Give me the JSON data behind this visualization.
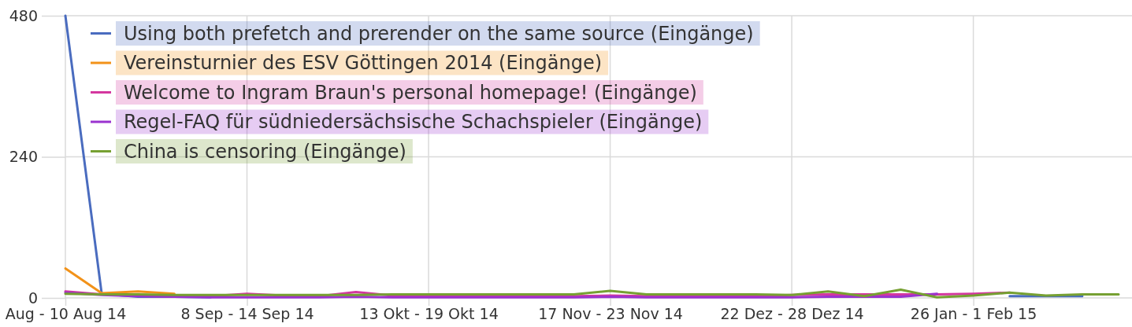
{
  "chart_data": {
    "type": "line",
    "categories": [
      "Aug - 10 Aug 14",
      null,
      null,
      null,
      null,
      "8 Sep - 14 Sep 14",
      null,
      null,
      null,
      null,
      "13 Okt - 19 Okt 14",
      null,
      null,
      null,
      null,
      "17 Nov - 23 Nov 14",
      null,
      null,
      null,
      null,
      "22 Dez - 28 Dez 14",
      null,
      null,
      null,
      null,
      "26 Jan - 1 Feb 15",
      null,
      null,
      null,
      null
    ],
    "series": [
      {
        "name": "Using both prefetch and prerender on the same source (Eingänge)",
        "color": "#4a6cbf",
        "values": [
          480,
          7,
          2,
          2,
          1,
          null,
          null,
          null,
          null,
          null,
          null,
          null,
          null,
          null,
          null,
          null,
          null,
          null,
          null,
          null,
          null,
          null,
          null,
          null,
          null,
          null,
          3,
          3,
          3,
          null
        ]
      },
      {
        "name": "Vereinsturnier des ESV Göttingen 2014 (Eingänge)",
        "color": "#f29219",
        "values": [
          50,
          8,
          11,
          7,
          null,
          null,
          null,
          null,
          null,
          null,
          null,
          null,
          null,
          null,
          null,
          null,
          null,
          null,
          null,
          null,
          null,
          null,
          null,
          null,
          null,
          null,
          null,
          null,
          null,
          null
        ]
      },
      {
        "name": "Welcome to Ingram Braun's personal homepage! (Eingänge)",
        "color": "#d4379f",
        "values": [
          11,
          6,
          4,
          3,
          3,
          7,
          4,
          3,
          10,
          4,
          3,
          3,
          3,
          3,
          3,
          4,
          3,
          3,
          3,
          3,
          5,
          6,
          6,
          6,
          6,
          7,
          9,
          null,
          null,
          null
        ]
      },
      {
        "name": "Regel-FAQ für südniedersächsische Schachspieler (Eingänge)",
        "color": "#9a33cf",
        "values": [
          9,
          5,
          3,
          2,
          1,
          1,
          1,
          1,
          2,
          1,
          1,
          1,
          1,
          1,
          1,
          2,
          1,
          1,
          1,
          1,
          1,
          2,
          2,
          2,
          7,
          null,
          null,
          null,
          null,
          null
        ]
      },
      {
        "name": "China is censoring (Eingänge)",
        "color": "#76a032",
        "values": [
          7,
          6,
          6,
          5,
          5,
          5,
          5,
          5,
          5,
          6,
          6,
          6,
          6,
          6,
          6,
          12,
          6,
          6,
          6,
          6,
          5,
          11,
          3,
          14,
          1,
          4,
          9,
          4,
          6,
          6
        ]
      }
    ],
    "ylim": [
      0,
      480
    ],
    "yticks": [
      0,
      240,
      480
    ],
    "grid": true,
    "legend": "top left"
  }
}
